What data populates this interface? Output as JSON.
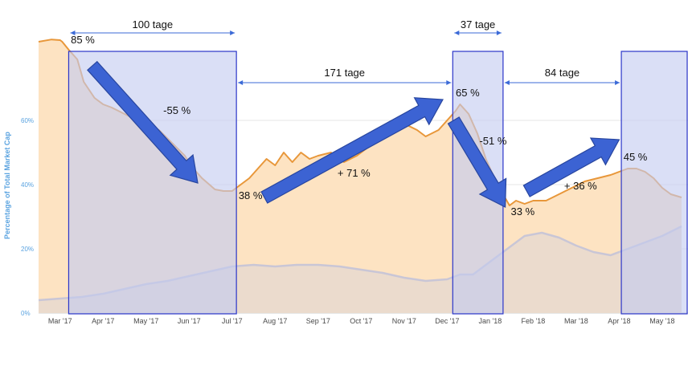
{
  "chart_data": {
    "type": "area",
    "ylabel": "Percentage of Total Market Cap",
    "ylim": [
      0,
      90
    ],
    "yticks": [
      "0%",
      "20%",
      "40%",
      "60%"
    ],
    "yticks_values": [
      0,
      20,
      40,
      60
    ],
    "xticks": [
      "Mar '17",
      "Apr '17",
      "May '17",
      "Jun '17",
      "Jul '17",
      "Aug '17",
      "Sep '17",
      "Oct '17",
      "Nov '17",
      "Dec '17",
      "Jan '18",
      "Feb '18",
      "Mar '18",
      "Apr '18",
      "May '18"
    ],
    "xticks_values": [
      1,
      2,
      3,
      4,
      5,
      6,
      7,
      8,
      9,
      10,
      11,
      12,
      13,
      14,
      15
    ],
    "xlim": [
      0.5,
      15.6
    ],
    "series": [
      {
        "color": "#e8973a",
        "fill": "#fde3c2",
        "x": [
          0.5,
          0.8,
          1.0,
          1.05,
          1.2,
          1.4,
          1.55,
          1.8,
          2.0,
          2.2,
          2.5,
          2.8,
          3.0,
          3.3,
          3.6,
          3.9,
          4.1,
          4.3,
          4.6,
          4.8,
          5.0,
          5.2,
          5.4,
          5.6,
          5.8,
          6.0,
          6.2,
          6.4,
          6.6,
          6.8,
          7.0,
          7.3,
          7.6,
          7.9,
          8.1,
          8.4,
          8.7,
          9.0,
          9.3,
          9.5,
          9.8,
          10.0,
          10.2,
          10.3,
          10.5,
          10.7,
          10.9,
          11.1,
          11.3,
          11.45,
          11.6,
          11.8,
          12.0,
          12.3,
          12.6,
          12.9,
          13.2,
          13.5,
          13.8,
          14.0,
          14.2,
          14.4,
          14.6,
          14.8,
          15.0,
          15.2,
          15.45
        ],
        "values": [
          84.5,
          85.2,
          85.0,
          84.5,
          82,
          79,
          72,
          67,
          65,
          64,
          62,
          60,
          59,
          57,
          53,
          49,
          45,
          42,
          38.5,
          38,
          38,
          40,
          42,
          45,
          48,
          46,
          50,
          47,
          50,
          48,
          49,
          50,
          47,
          49,
          51,
          54,
          56,
          59,
          57,
          55,
          57,
          60,
          63,
          65,
          62,
          56,
          48,
          42,
          37,
          33.5,
          35,
          34,
          35,
          35,
          37,
          39,
          41,
          42,
          43,
          44,
          45,
          45,
          44,
          42,
          39,
          37,
          36
        ]
      },
      {
        "color": "#c9c6d6",
        "fill": "#e8d9cf",
        "x": [
          0.5,
          1.0,
          1.5,
          2.0,
          2.5,
          3.0,
          3.5,
          4.0,
          4.5,
          5.0,
          5.5,
          6.0,
          6.5,
          7.0,
          7.5,
          8.0,
          8.5,
          9.0,
          9.5,
          10.0,
          10.3,
          10.6,
          11.0,
          11.4,
          11.8,
          12.2,
          12.6,
          13.0,
          13.4,
          13.8,
          14.2,
          14.6,
          15.0,
          15.45
        ],
        "values": [
          4,
          4.5,
          5,
          6,
          7.5,
          9,
          10,
          11.5,
          13,
          14.5,
          15,
          14.5,
          15,
          15,
          14.5,
          13.5,
          12.5,
          11,
          10,
          10.5,
          12,
          12,
          16,
          20,
          24,
          25,
          23.5,
          21,
          19,
          18,
          20,
          22,
          24,
          27
        ]
      }
    ],
    "shaded_periods": [
      {
        "x0": 1.2,
        "x1": 5.1,
        "label": "100 tage"
      },
      {
        "x0": 10.13,
        "x1": 11.3,
        "label": "37 tage"
      },
      {
        "x0": 14.05,
        "x1": 15.6,
        "label": ""
      }
    ],
    "gap_intervals": [
      {
        "x0": 5.1,
        "x1": 10.13,
        "label": "171 tage"
      },
      {
        "x0": 11.3,
        "x1": 14.05,
        "label": "84 tage"
      }
    ],
    "annotations": [
      {
        "text": "85 %",
        "x": 1.25,
        "y": 84
      },
      {
        "text": "-55 %",
        "x": 3.4,
        "y": 62
      },
      {
        "text": "38 %",
        "x": 5.15,
        "y": 35.5
      },
      {
        "text": "+ 71 %",
        "x": 7.45,
        "y": 42.5
      },
      {
        "text": "65 %",
        "x": 10.2,
        "y": 67.5
      },
      {
        "text": "-51 %",
        "x": 10.75,
        "y": 52.5
      },
      {
        "text": "33 %",
        "x": 11.48,
        "y": 30.5
      },
      {
        "text": "+ 36 %",
        "x": 12.72,
        "y": 38.5
      },
      {
        "text": "45 %",
        "x": 14.1,
        "y": 47.5
      }
    ],
    "trend_arrows": [
      {
        "from": [
          1.75,
          77
        ],
        "to": [
          4.2,
          40.5
        ]
      },
      {
        "from": [
          5.75,
          36
        ],
        "to": [
          9.9,
          66.5
        ]
      },
      {
        "from": [
          10.15,
          60
        ],
        "to": [
          11.35,
          33
        ]
      },
      {
        "from": [
          11.85,
          38
        ],
        "to": [
          14.0,
          54
        ]
      }
    ],
    "colors": {
      "shade_fill": "#c3cbf1",
      "shade_border": "#2b36c9",
      "arrow_fill": "#3c63d3",
      "arrow_stroke": "#28469f",
      "span_arrow": "#3b6ad7"
    }
  }
}
